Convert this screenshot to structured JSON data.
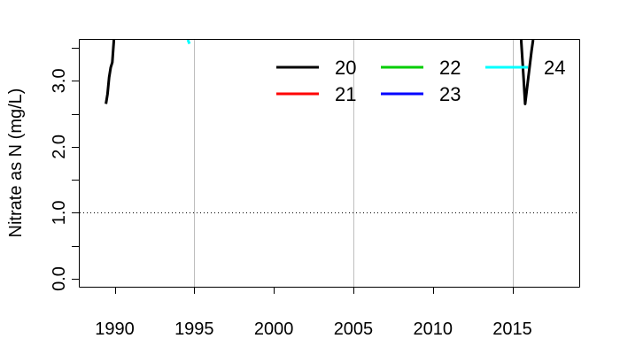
{
  "chart_data": {
    "type": "line",
    "title": "",
    "xlabel": "",
    "ylabel": "Nitrate as N (mg/L)",
    "xlim": [
      1987.8,
      2019.2
    ],
    "ylim": [
      -0.12,
      3.62
    ],
    "x_ticks": [
      1990,
      1995,
      2000,
      2005,
      2010,
      2015
    ],
    "x_tick_labels": [
      "1990",
      "1995",
      "2000",
      "2005",
      "2010",
      "2015"
    ],
    "y_ticks": [
      0.0,
      0.5,
      1.0,
      1.5,
      2.0,
      2.5,
      3.0,
      3.5
    ],
    "y_tick_labels": [
      "0.0",
      "",
      "1.0",
      "",
      "2.0",
      "",
      "3.0",
      ""
    ],
    "vertical_gridlines": [
      1995,
      2005,
      2015
    ],
    "reference_line": {
      "y": 1.0,
      "style": "dotted"
    },
    "legend_position": "top-right",
    "series": [
      {
        "name": "20",
        "color": "#000000",
        "segments": [
          [
            [
              1989.45,
              2.65
            ],
            [
              1989.55,
              2.8
            ],
            [
              1989.65,
              3.05
            ],
            [
              1989.75,
              3.2
            ],
            [
              1989.85,
              3.28
            ],
            [
              1989.95,
              3.62
            ]
          ],
          [
            [
              2015.55,
              3.62
            ],
            [
              2015.7,
              3.05
            ],
            [
              2015.8,
              2.65
            ],
            [
              2015.9,
              2.85
            ],
            [
              2016.0,
              3.05
            ],
            [
              2016.1,
              3.25
            ],
            [
              2016.2,
              3.45
            ],
            [
              2016.3,
              3.62
            ]
          ]
        ]
      },
      {
        "name": "21",
        "color": "#ff0000",
        "segments": []
      },
      {
        "name": "22",
        "color": "#00cd00",
        "segments": []
      },
      {
        "name": "23",
        "color": "#0000ff",
        "segments": []
      },
      {
        "name": "24",
        "color": "#00ffff",
        "segments": [
          [
            [
              1994.6,
              3.62
            ],
            [
              1994.7,
              3.56
            ]
          ]
        ]
      }
    ]
  }
}
